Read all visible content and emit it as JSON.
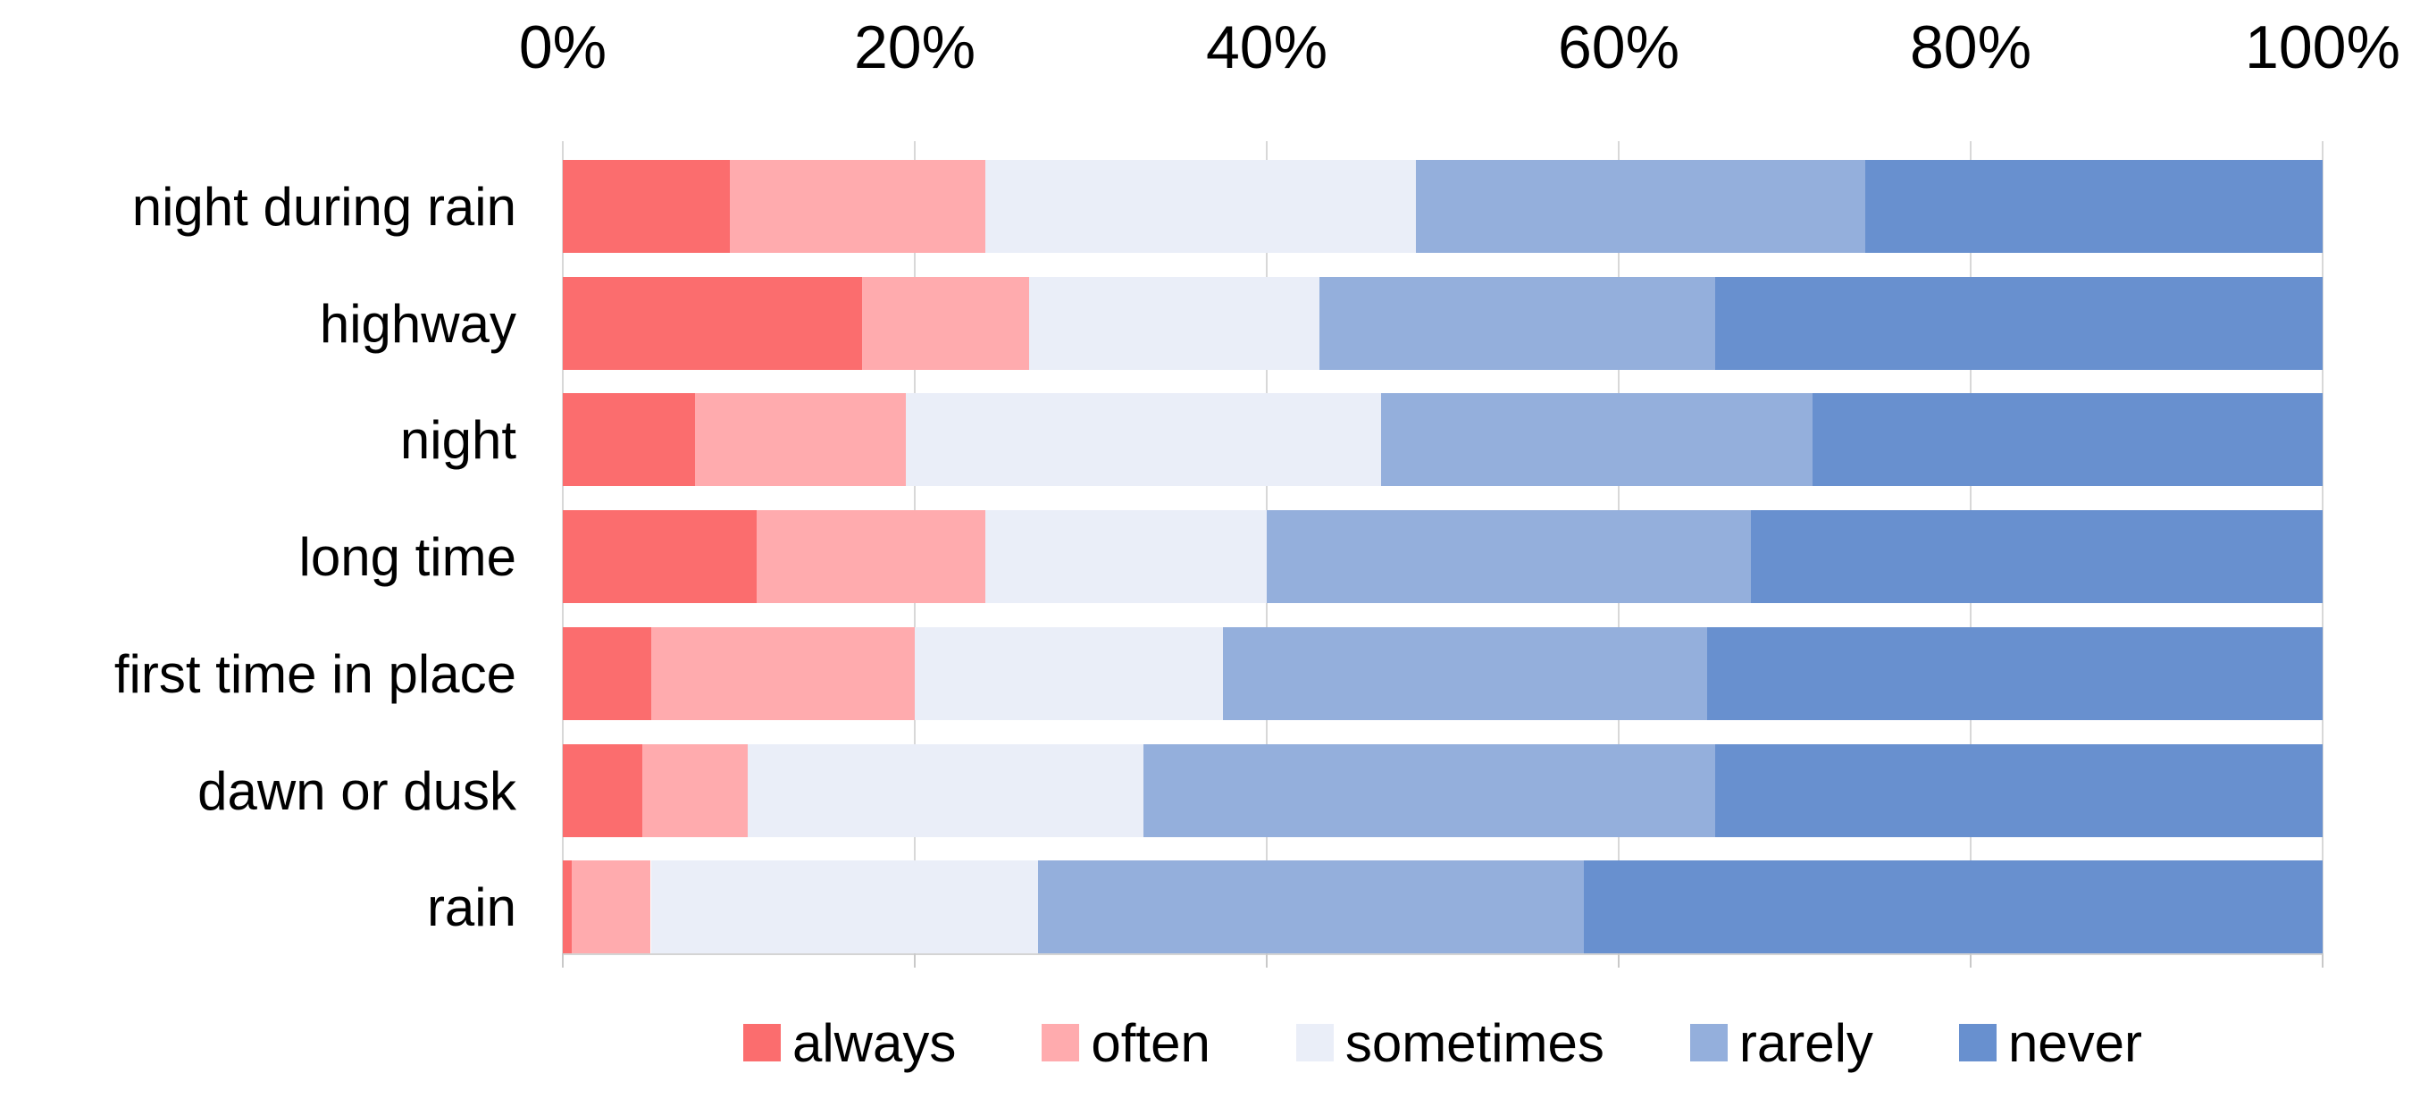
{
  "chart_data": {
    "type": "bar",
    "orientation": "horizontal-stacked",
    "title": "",
    "categories": [
      "night during rain",
      "highway",
      "night",
      "long time",
      "first time in place",
      "dawn or dusk",
      "rain"
    ],
    "series": [
      {
        "name": "always",
        "color": "#fb6d6e",
        "values": [
          9.5,
          17,
          7.5,
          11,
          5,
          4.5,
          0.5
        ]
      },
      {
        "name": "often",
        "color": "#ffabae",
        "values": [
          14.5,
          9.5,
          12,
          13,
          15,
          6,
          4.5
        ]
      },
      {
        "name": "sometimes",
        "color": "#eaeef8",
        "values": [
          24.5,
          16.5,
          27,
          16,
          17.5,
          22.5,
          22
        ]
      },
      {
        "name": "rarely",
        "color": "#94afdc",
        "values": [
          25.5,
          22.5,
          24.5,
          27.5,
          27.5,
          32.5,
          31
        ]
      },
      {
        "name": "never",
        "color": "#6890cf",
        "values": [
          26,
          34.5,
          29,
          32.5,
          35,
          34.5,
          42
        ]
      }
    ],
    "x_axis": {
      "ticks": [
        "0%",
        "20%",
        "40%",
        "60%",
        "80%",
        "100%"
      ],
      "range": [
        0,
        100
      ],
      "position": "top"
    },
    "legend": {
      "position": "bottom",
      "entries": [
        "always",
        "often",
        "sometimes",
        "rarely",
        "never"
      ]
    },
    "grid": true
  },
  "colors": {
    "gridline": "#d8d8d8",
    "axis_line": "#d4d4d4",
    "text": "#000000",
    "background": "#ffffff"
  }
}
